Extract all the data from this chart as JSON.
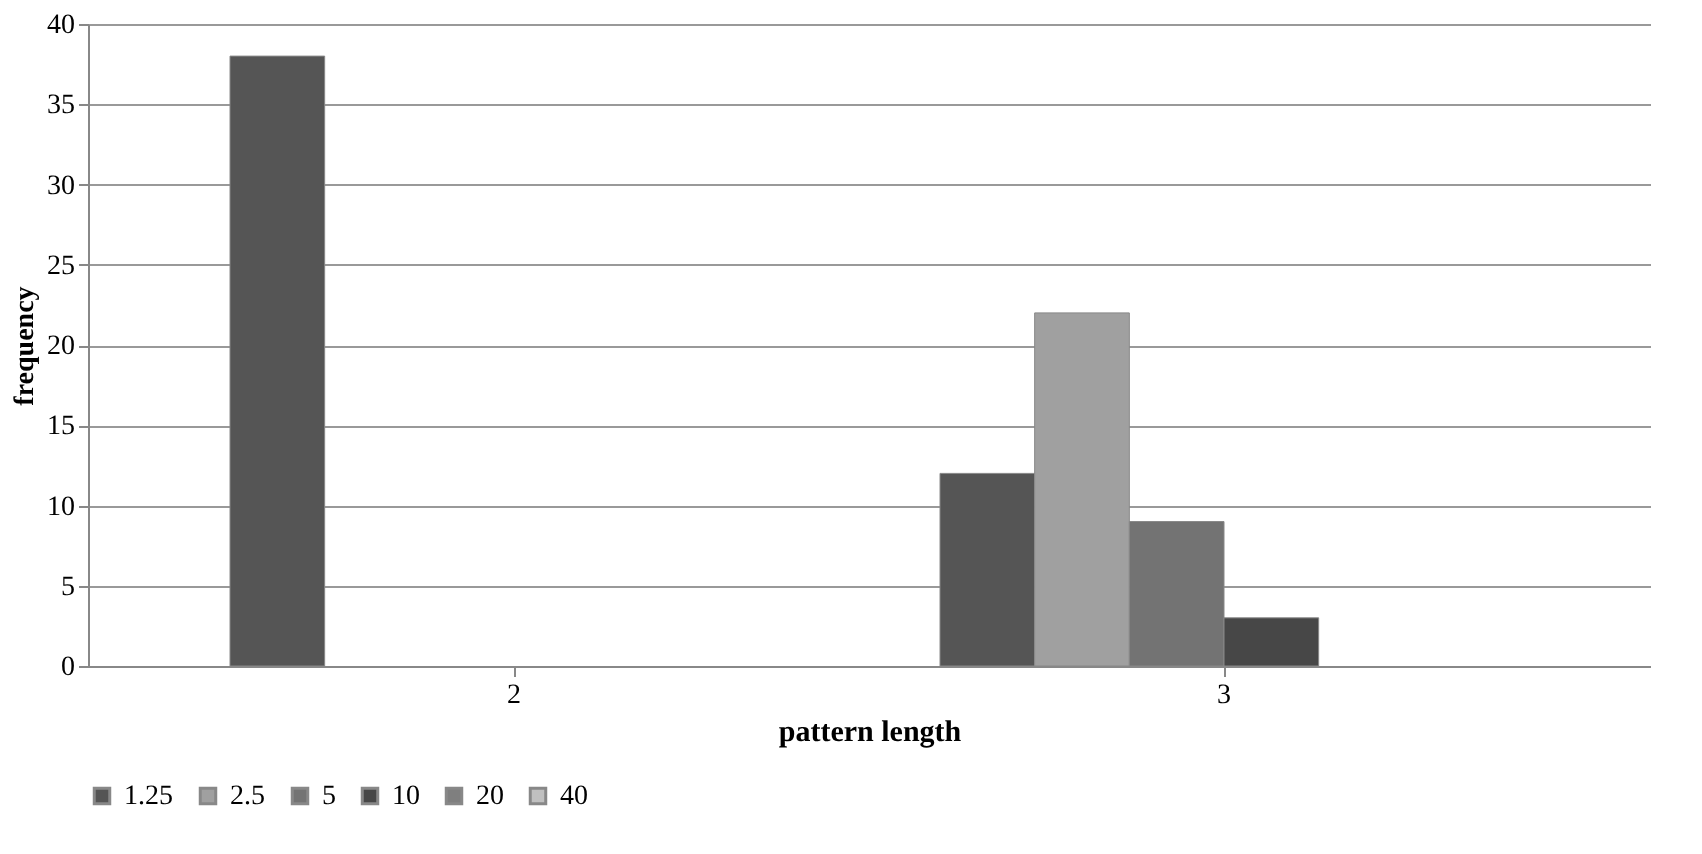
{
  "chart_data": {
    "type": "bar",
    "xlabel": "pattern length",
    "ylabel": "frequency",
    "categories": [
      "2",
      "3"
    ],
    "series": [
      {
        "name": "1.25",
        "color": "#555555",
        "values": [
          38,
          12
        ]
      },
      {
        "name": "2.5",
        "color": "#a0a0a0",
        "values": [
          null,
          22
        ]
      },
      {
        "name": "5",
        "color": "#737373",
        "values": [
          null,
          9
        ]
      },
      {
        "name": "10",
        "color": "#474747",
        "values": [
          null,
          3
        ]
      },
      {
        "name": "20",
        "color": "#7f7f7f",
        "values": [
          null,
          null
        ]
      },
      {
        "name": "40",
        "color": "#c0c0c0",
        "values": [
          null,
          null
        ]
      }
    ],
    "ylim": [
      0,
      40
    ],
    "yticks": [
      0,
      5,
      10,
      15,
      20,
      25,
      30,
      35,
      40
    ],
    "grid": "y",
    "legend": "bottom"
  }
}
